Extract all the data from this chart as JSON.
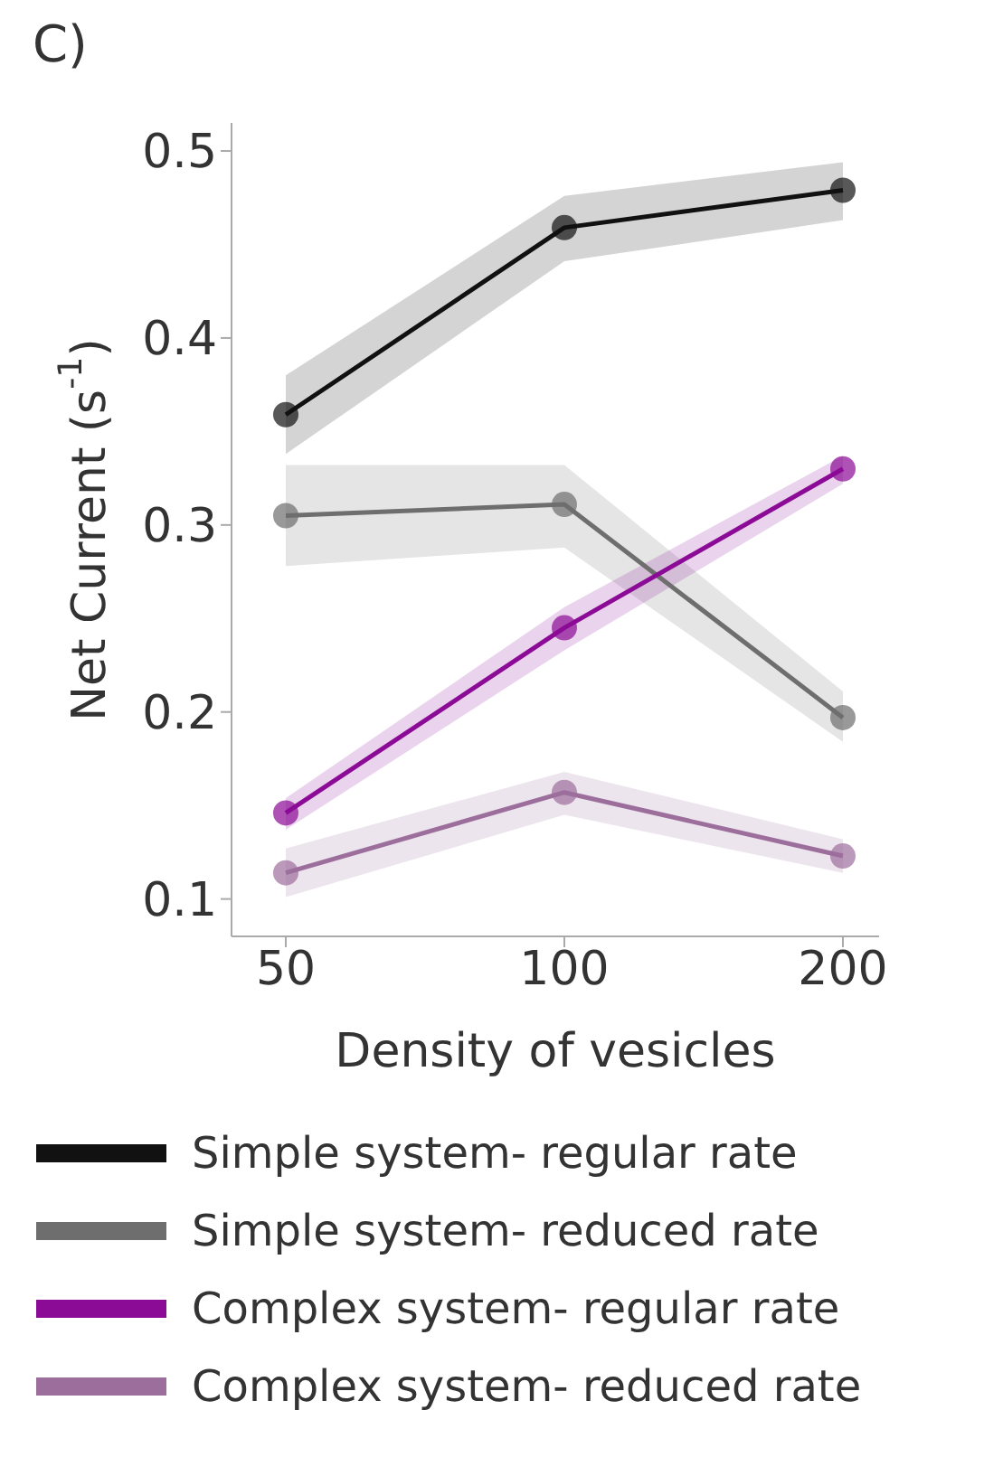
{
  "chart_data": {
    "type": "line",
    "title": "C)",
    "xlabel": "Density of vesicles",
    "ylabel": "Net Current (s$^{-1}$)",
    "categories": [
      "50",
      "100",
      "200"
    ],
    "ylim": [
      0.08,
      0.515
    ],
    "yticks": [
      0.1,
      0.2,
      0.3,
      0.4,
      0.5
    ],
    "grid": false,
    "legend": "bottom",
    "marker": "circle",
    "line_style": "solid",
    "series": [
      {
        "name": "Simple system- regular rate",
        "color": "#111111",
        "values": [
          0.359,
          0.459,
          0.479
        ],
        "lower": [
          0.338,
          0.441,
          0.463
        ],
        "upper": [
          0.38,
          0.476,
          0.494
        ]
      },
      {
        "name": "Simple system- reduced rate",
        "color": "#6e6e6e",
        "values": [
          0.305,
          0.311,
          0.197
        ],
        "lower": [
          0.278,
          0.288,
          0.184
        ],
        "upper": [
          0.332,
          0.332,
          0.211
        ]
      },
      {
        "name": "Complex system- regular rate",
        "color": "#8b0a96",
        "values": [
          0.146,
          0.245,
          0.33
        ],
        "lower": [
          0.137,
          0.233,
          0.322
        ],
        "upper": [
          0.154,
          0.256,
          0.337
        ]
      },
      {
        "name": "Complex system- reduced rate",
        "color": "#9c6e9c",
        "values": [
          0.114,
          0.157,
          0.123
        ],
        "lower": [
          0.101,
          0.145,
          0.114
        ],
        "upper": [
          0.127,
          0.168,
          0.132
        ]
      }
    ]
  }
}
